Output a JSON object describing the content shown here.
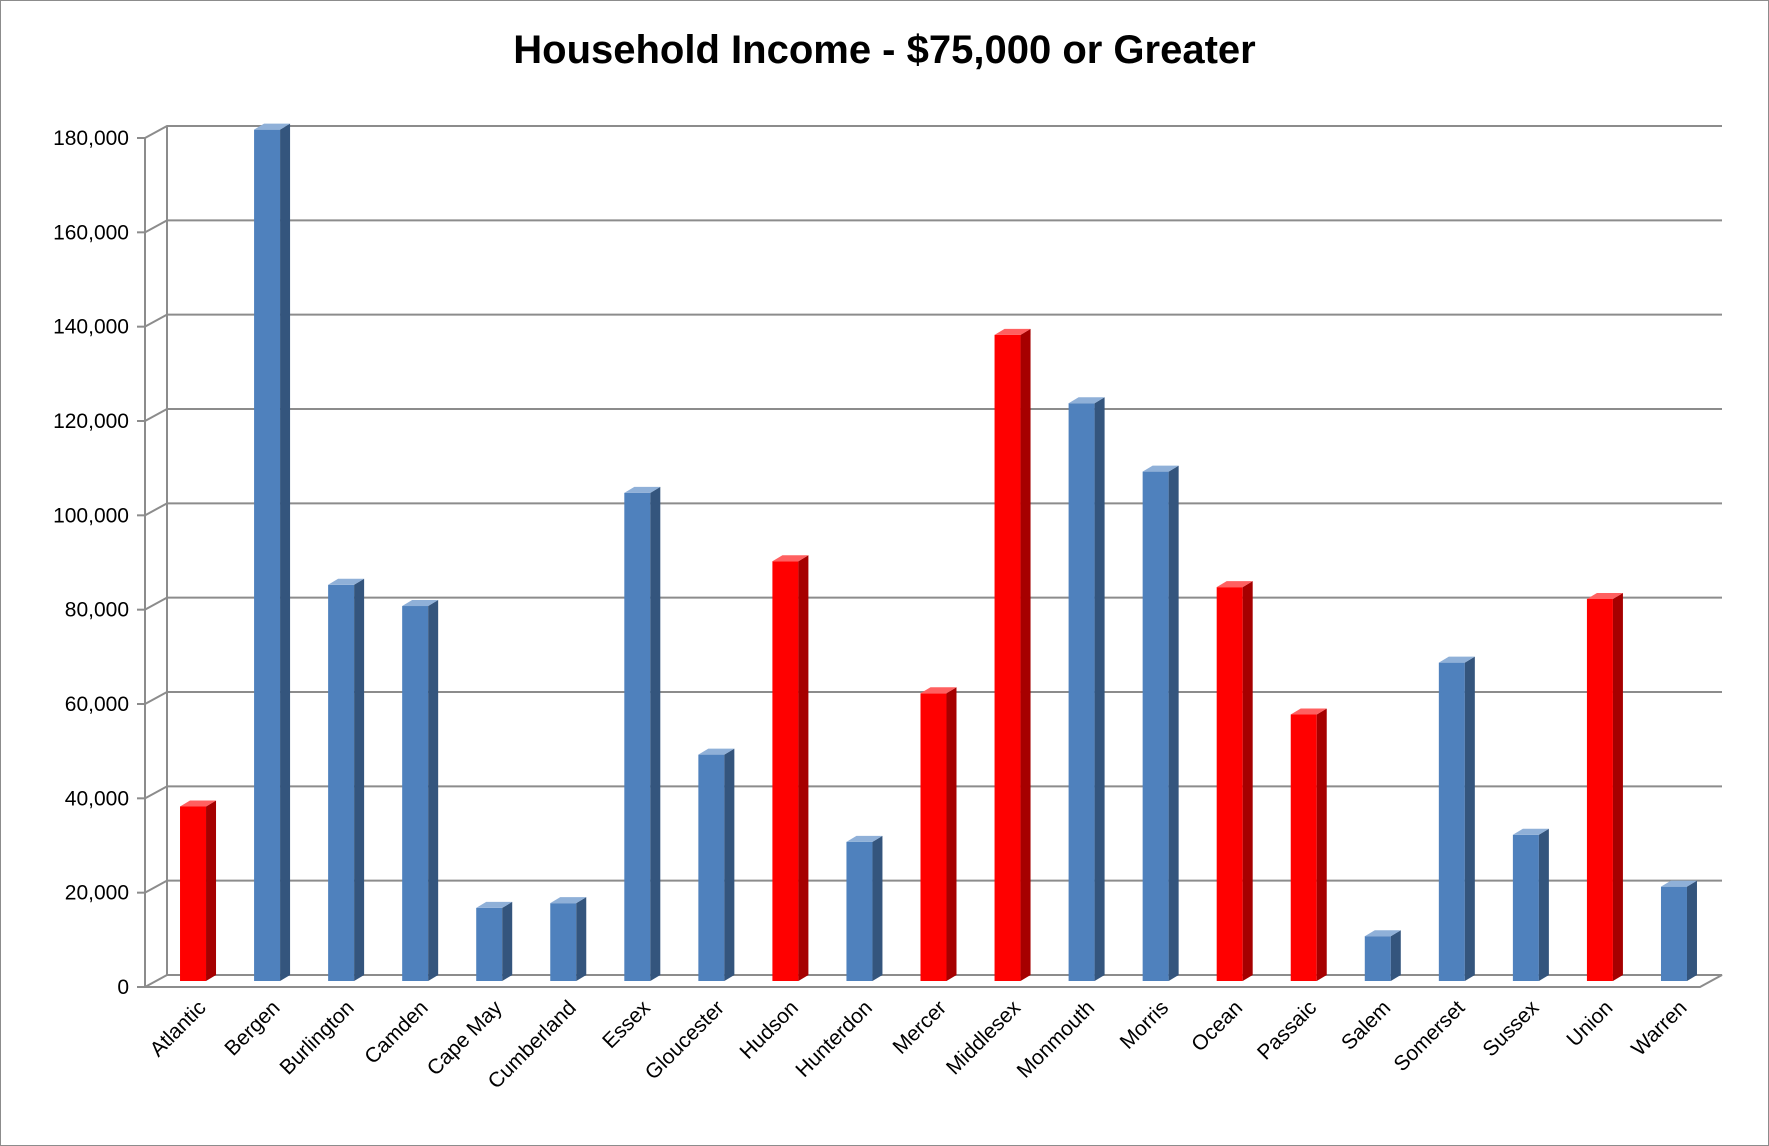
{
  "chart_data": {
    "type": "bar",
    "title": "Household Income - $75,000 or Greater",
    "xlabel": "",
    "ylabel": "",
    "ylim": [
      0,
      180000
    ],
    "yticks": [
      "0",
      "20,000",
      "40,000",
      "60,000",
      "80,000",
      "100,000",
      "120,000",
      "140,000",
      "160,000",
      "180,000"
    ],
    "grid": true,
    "legend": "none",
    "colors": {
      "red": "#ff0000",
      "blue": "#4f81bd"
    },
    "categories": [
      "Atlantic",
      "Bergen",
      "Burlington",
      "Camden",
      "Cape May",
      "Cumberland",
      "Essex",
      "Gloucester",
      "Hudson",
      "Hunterdon",
      "Mercer",
      "Middlesex",
      "Monmouth",
      "Morris",
      "Ocean",
      "Passaic",
      "Salem",
      "Somerset",
      "Sussex",
      "Union",
      "Warren"
    ],
    "values": [
      37000,
      180500,
      84000,
      79500,
      15500,
      16500,
      103500,
      48000,
      89000,
      29500,
      61000,
      137000,
      122500,
      108000,
      83500,
      56500,
      9500,
      67500,
      31000,
      81000,
      20000
    ],
    "bar_colors": [
      "red",
      "blue",
      "blue",
      "blue",
      "blue",
      "blue",
      "blue",
      "blue",
      "red",
      "blue",
      "red",
      "red",
      "blue",
      "blue",
      "red",
      "red",
      "blue",
      "blue",
      "blue",
      "red",
      "blue"
    ]
  }
}
